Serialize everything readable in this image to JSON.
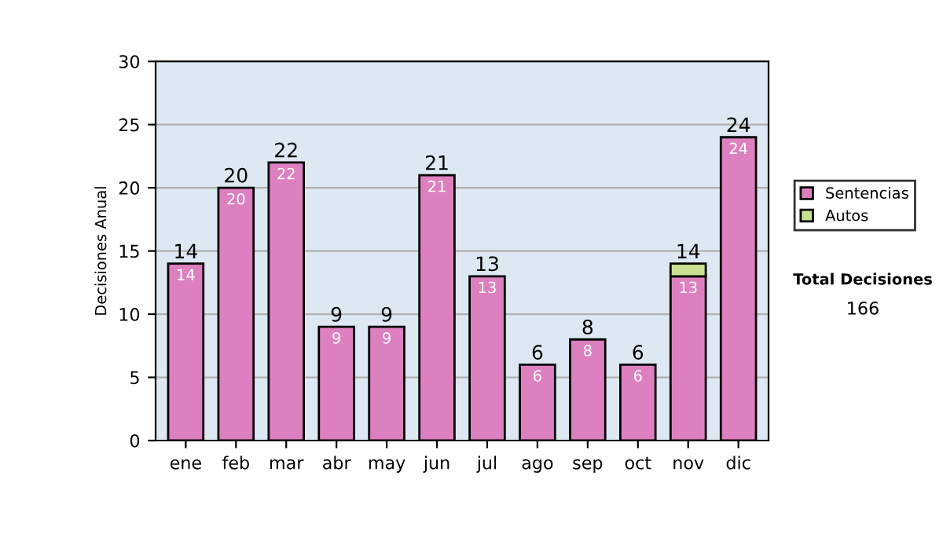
{
  "chart_data": {
    "type": "bar",
    "ylabel": "Decisiones Anual",
    "categories": [
      "ene",
      "feb",
      "mar",
      "abr",
      "may",
      "jun",
      "jul",
      "ago",
      "sep",
      "oct",
      "nov",
      "dic"
    ],
    "stacked": true,
    "series": [
      {
        "name": "Sentencias",
        "color": "#dd80c0",
        "values": [
          14,
          20,
          22,
          9,
          9,
          21,
          13,
          6,
          8,
          6,
          13,
          24
        ],
        "value_labels": [
          "14",
          "20",
          "22",
          "9",
          "9",
          "21",
          "13",
          "6",
          "8",
          "6",
          "13",
          "24"
        ]
      },
      {
        "name": "Autos",
        "color": "#c8e090",
        "values": [
          null,
          null,
          null,
          null,
          null,
          null,
          null,
          null,
          null,
          null,
          1,
          null
        ]
      }
    ],
    "totals": [
      "14",
      "20",
      "22",
      "9",
      "9",
      "21",
      "13",
      "6",
      "8",
      "6",
      "14",
      "24"
    ],
    "ylim": [
      0,
      30
    ],
    "yticks": [
      0,
      5,
      10,
      15,
      20,
      25,
      30
    ],
    "grid": "y",
    "legend": "right",
    "annotations": [
      "Total Decisiones",
      "166"
    ]
  }
}
